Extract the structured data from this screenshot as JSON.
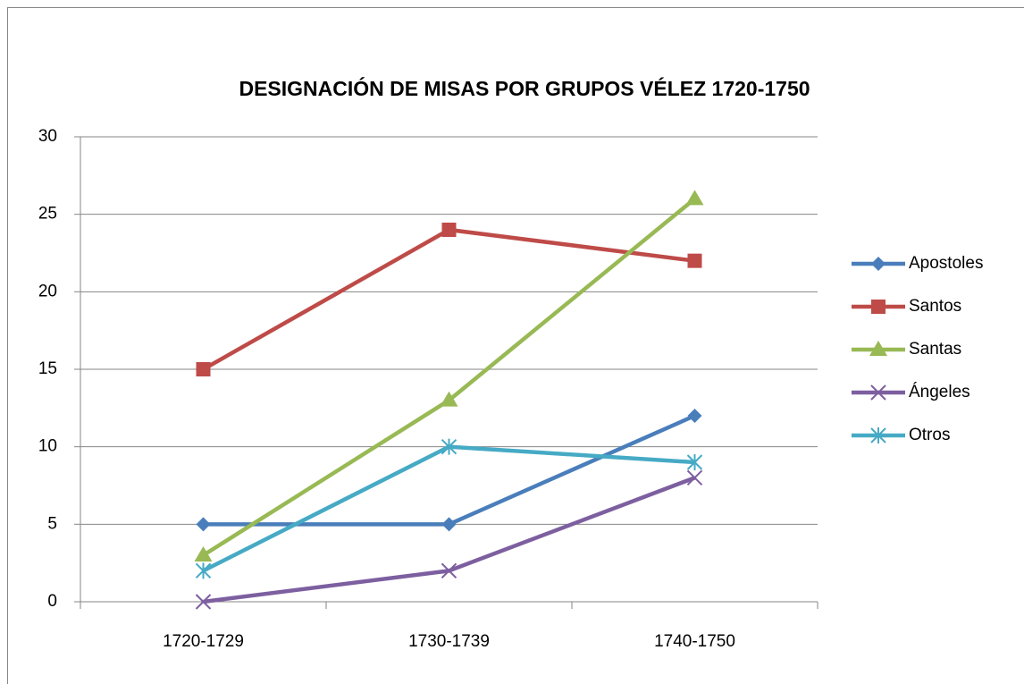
{
  "chart_data": {
    "type": "line",
    "title": "DESIGNACIÓN DE MISAS POR GRUPOS VÉLEZ 1720-1750",
    "categories": [
      "1720-1729",
      "1730-1739",
      "1740-1750"
    ],
    "series": [
      {
        "name": "Apostoles",
        "color": "#4a7ebb",
        "marker": "diamond",
        "values": [
          5,
          5,
          12
        ]
      },
      {
        "name": "Santos",
        "color": "#be4b48",
        "marker": "square",
        "values": [
          15,
          24,
          22
        ]
      },
      {
        "name": "Santas",
        "color": "#98b954",
        "marker": "triangle",
        "values": [
          3,
          13,
          26
        ]
      },
      {
        "name": "Ángeles",
        "color": "#7d5fa0",
        "marker": "x",
        "values": [
          0,
          2,
          8
        ]
      },
      {
        "name": "Otros",
        "color": "#46aac5",
        "marker": "star",
        "values": [
          2,
          10,
          9
        ]
      }
    ],
    "ylim": [
      0,
      30
    ],
    "yticks": [
      0,
      5,
      10,
      15,
      20,
      25,
      30
    ],
    "grid": true,
    "legend": "right"
  }
}
